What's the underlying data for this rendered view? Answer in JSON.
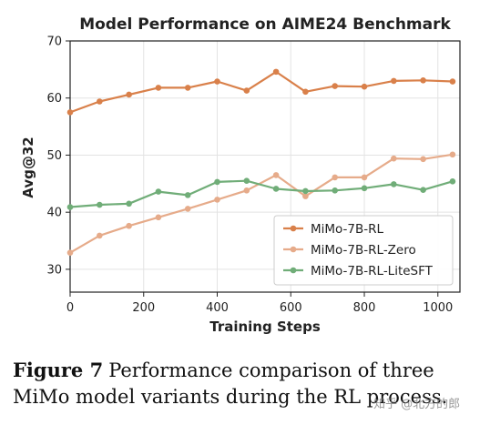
{
  "chart_data": {
    "type": "line",
    "title": "Model Performance on AIME24 Benchmark",
    "xlabel": "Training Steps",
    "ylabel": "Avg@32",
    "xlim": [
      0,
      1060
    ],
    "ylim": [
      26,
      70
    ],
    "xticks": [
      0,
      200,
      400,
      600,
      800,
      1000
    ],
    "yticks": [
      30,
      40,
      50,
      60,
      70
    ],
    "grid": true,
    "legend_position": "lower-right",
    "x": [
      0,
      80,
      160,
      240,
      320,
      400,
      480,
      560,
      640,
      720,
      800,
      880,
      960,
      1040
    ],
    "series": [
      {
        "name": "MiMo-7B-RL",
        "color": "#d9804a",
        "values": [
          57.5,
          59.4,
          60.6,
          61.8,
          61.8,
          62.9,
          61.3,
          64.6,
          61.1,
          62.1,
          62.0,
          63.0,
          63.1,
          62.9
        ]
      },
      {
        "name": "MiMo-7B-RL-Zero",
        "color": "#e6ab8a",
        "values": [
          32.9,
          35.9,
          37.6,
          39.1,
          40.6,
          42.2,
          43.8,
          46.5,
          42.8,
          46.1,
          46.1,
          49.4,
          49.3,
          50.1
        ]
      },
      {
        "name": "MiMo-7B-RL-LiteSFT",
        "color": "#70ad78",
        "values": [
          40.9,
          41.3,
          41.5,
          43.6,
          43.0,
          45.3,
          45.5,
          44.1,
          43.7,
          43.8,
          44.2,
          44.9,
          43.9,
          45.4
        ]
      }
    ]
  },
  "caption": {
    "label": "Figure 7",
    "text": "Performance comparison of three MiMo model variants during the RL process."
  },
  "watermark": "知乎 @北方的郎"
}
